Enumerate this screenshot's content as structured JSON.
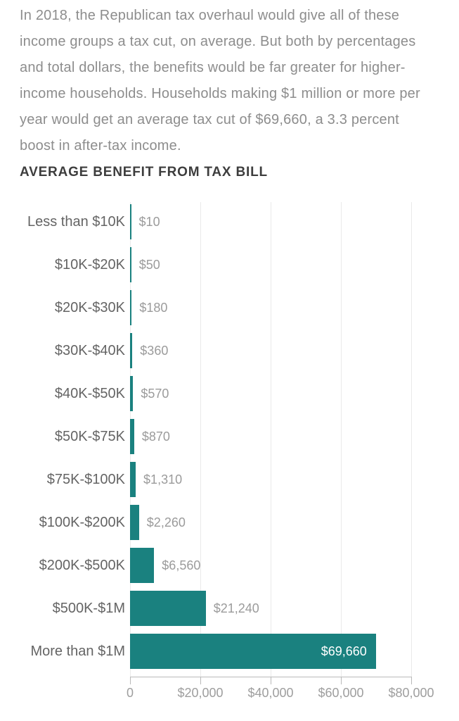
{
  "intro": {
    "text": "In 2018, the Republican tax overhaul would give all of these\nincome groups a tax cut, on average. But both by percentages\nand total dollars, the benefits would be far greater for higher-\nincome households. Households making $1 million or more per\nyear would get an average tax cut of $69,660, a 3.3 percent\nboost in after-tax income."
  },
  "chart_data": {
    "type": "bar",
    "orientation": "horizontal",
    "title": "AVERAGE BENEFIT FROM TAX BILL",
    "categories": [
      "Less than $10K",
      "$10K-$20K",
      "$20K-$30K",
      "$30K-$40K",
      "$40K-$50K",
      "$50K-$75K",
      "$75K-$100K",
      "$100K-$200K",
      "$200K-$500K",
      "$500K-$1M",
      "More than $1M"
    ],
    "values": [
      10,
      50,
      180,
      360,
      570,
      870,
      1310,
      2260,
      6560,
      21240,
      69660
    ],
    "value_labels": [
      "$10",
      "$50",
      "$180",
      "$360",
      "$570",
      "$870",
      "$1,310",
      "$2,260",
      "$6,560",
      "$21,240",
      "$69,660"
    ],
    "x_ticks": [
      0,
      20000,
      40000,
      60000,
      80000
    ],
    "x_tick_labels": [
      "0",
      "$20,000",
      "$40,000",
      "$60,000",
      "$80,000"
    ],
    "xlim": [
      0,
      80000
    ],
    "xlabel": "",
    "ylabel": "",
    "grid": true,
    "legend_position": "none",
    "last_value_label_inside": true
  },
  "colors": {
    "background": "#ffffff",
    "bar": "#1a817f",
    "title": "#3d3d3d",
    "intro_text": "#8d8d8d",
    "category_label": "#646464",
    "value_label": "#9b9b9b",
    "value_label_inside": "#ffffff",
    "axis": "#b9b9b9",
    "tick_label": "#9e9e9e",
    "gridline": "#eaeaea"
  }
}
